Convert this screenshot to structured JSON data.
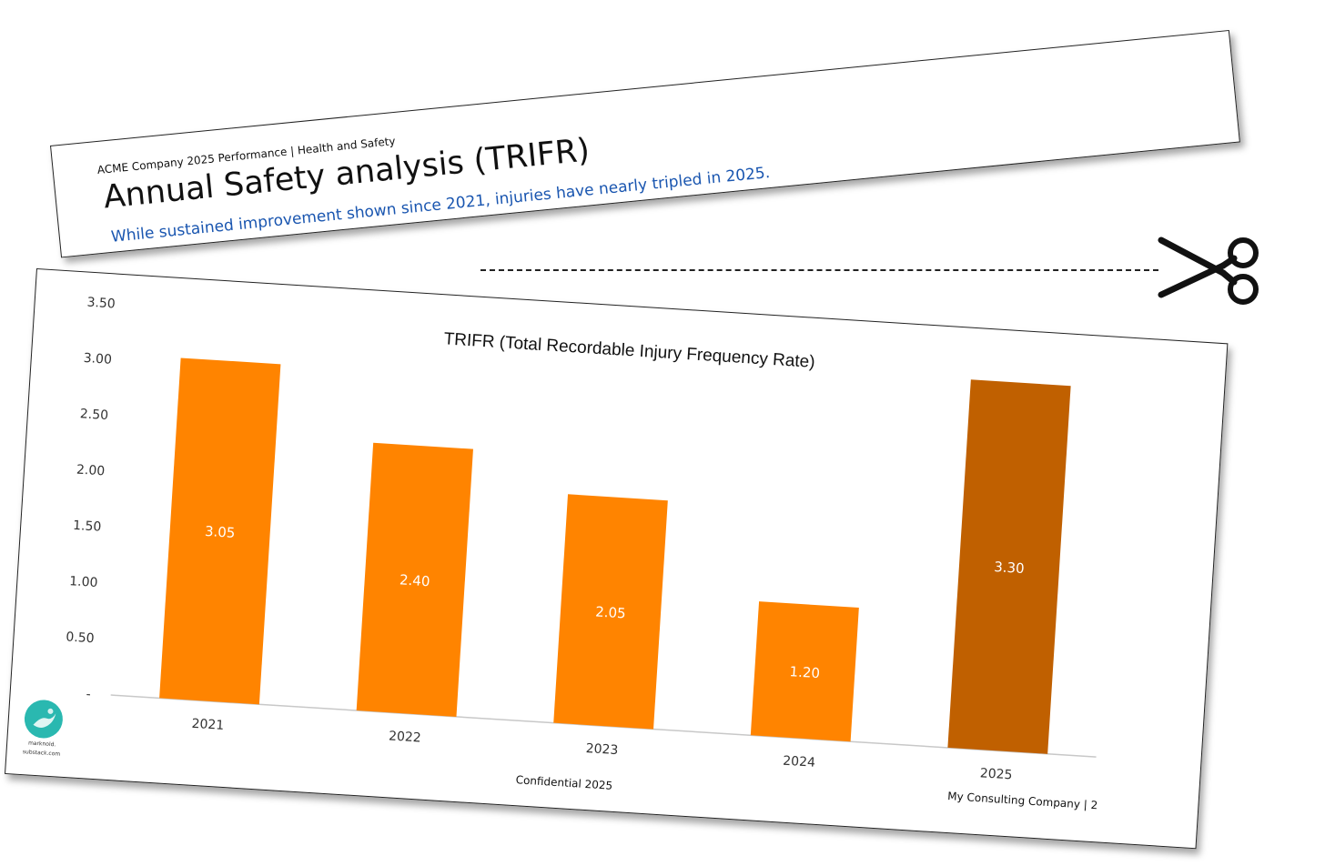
{
  "header": {
    "breadcrumb": "ACME Company 2025 Performance | Health and Safety",
    "title": "Annual Safety analysis (TRIFR)",
    "subtitle": "While sustained improvement shown since 2021, injuries have nearly tripled in 2025.",
    "subtitle_color": "#1a56b0"
  },
  "slide": {
    "confidential": "Confidential 2025",
    "company": "My Consulting Company | 2",
    "logo": {
      "icon": "water-drop-logo-icon",
      "line1": "marknold.",
      "line2": "substack.com"
    }
  },
  "decor": {
    "scissors_icon": "scissors-icon",
    "cut_line": "dashed-cut-line"
  },
  "chart_data": {
    "type": "bar",
    "title": "TRIFR (Total Recordable Injury Frequency Rate)",
    "xlabel": "",
    "ylabel": "",
    "categories": [
      "2021",
      "2022",
      "2023",
      "2024",
      "2025"
    ],
    "values": [
      3.05,
      2.4,
      2.05,
      1.2,
      3.3
    ],
    "value_labels": [
      "3.05",
      "2.40",
      "2.05",
      "1.20",
      "3.30"
    ],
    "y_ticks": [
      "-",
      "0.50",
      "1.00",
      "1.50",
      "2.00",
      "2.50",
      "3.00",
      "3.50"
    ],
    "y_tick_values": [
      0,
      0.5,
      1.0,
      1.5,
      2.0,
      2.5,
      3.0,
      3.5
    ],
    "ylim": [
      0,
      3.5
    ],
    "grid": false,
    "legend": "none",
    "colors": [
      "#ff8400",
      "#ff8400",
      "#ff8400",
      "#ff8400",
      "#c06000"
    ]
  }
}
